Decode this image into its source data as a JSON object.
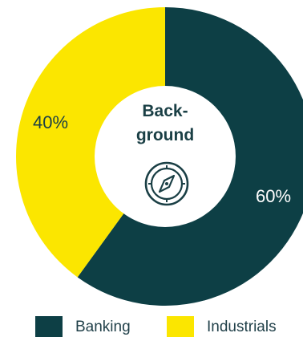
{
  "chart_data": {
    "type": "pie",
    "style": "donut",
    "center_title": [
      "Back-",
      "ground"
    ],
    "center_icon": "compass-icon",
    "slices": [
      {
        "name": "Banking",
        "value": 60,
        "label": "60%",
        "color": "#0d3f45",
        "label_color": "#ffffff"
      },
      {
        "name": "Industrials",
        "value": 40,
        "label": "40%",
        "color": "#fbe600",
        "label_color": "#1a3f45"
      }
    ],
    "legend": {
      "placement": "bottom",
      "entries": [
        "Banking",
        "Industrials"
      ]
    }
  }
}
